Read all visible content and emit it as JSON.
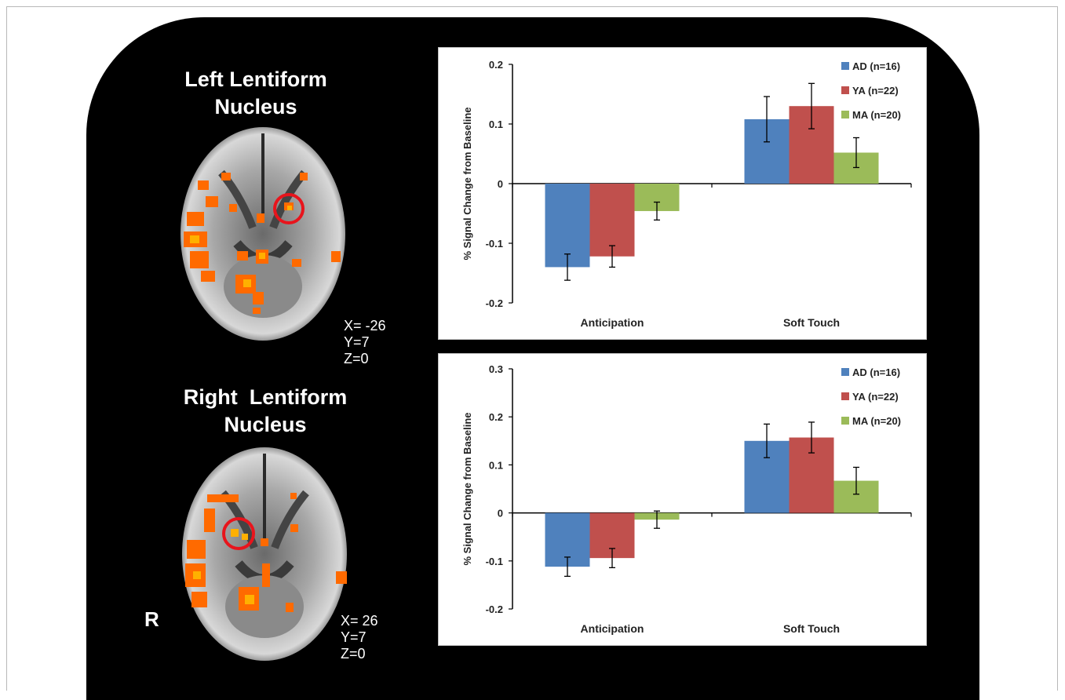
{
  "figure": {
    "brain_top": {
      "title": "Left Lentiform Nucleus",
      "title_lines": [
        "Left Lentiform",
        "Nucleus"
      ],
      "coords": [
        "X= -26",
        "Y=7",
        "Z=0"
      ]
    },
    "brain_bottom": {
      "title": "Right  Lentiform Nucleus",
      "title_lines": [
        "Right  Lentiform",
        "Nucleus"
      ],
      "coords": [
        "X= 26",
        "Y=7",
        "Z=0"
      ],
      "orientation_label": "R"
    },
    "colors": {
      "AD": "#4f81bd",
      "YA": "#c0504d",
      "MA": "#9bbb59",
      "activation": "#ff7a00",
      "roi_circle": "#e8141c"
    }
  },
  "chart_data": [
    {
      "type": "bar",
      "categories": [
        "Anticipation",
        "Soft Touch"
      ],
      "series": [
        {
          "name": "AD (n=16)",
          "values": [
            -0.14,
            0.108
          ],
          "errors": [
            0.022,
            0.038
          ]
        },
        {
          "name": "YA (n=22)",
          "values": [
            -0.122,
            0.13
          ],
          "errors": [
            0.018,
            0.038
          ]
        },
        {
          "name": "MA (n=20)",
          "values": [
            -0.046,
            0.052
          ],
          "errors": [
            0.015,
            0.025
          ]
        }
      ],
      "ylabel": "% Signal Change from Baseline",
      "xlabel": "",
      "ylim": [
        -0.2,
        0.2
      ],
      "yticks": [
        0.2,
        0.1,
        0,
        -0.1,
        -0.2
      ],
      "ytick_labels": [
        "0.2",
        "0.1",
        "0",
        "-0.1",
        "-0.2"
      ],
      "legend": "top-right",
      "grid": false
    },
    {
      "type": "bar",
      "categories": [
        "Anticipation",
        "Soft Touch"
      ],
      "series": [
        {
          "name": "AD (n=16)",
          "values": [
            -0.112,
            0.15
          ],
          "errors": [
            0.02,
            0.035
          ]
        },
        {
          "name": "YA (n=22)",
          "values": [
            -0.094,
            0.157
          ],
          "errors": [
            0.02,
            0.032
          ]
        },
        {
          "name": "MA (n=20)",
          "values": [
            -0.014,
            0.067
          ],
          "errors": [
            0.018,
            0.028
          ]
        }
      ],
      "ylabel": "% Signal Change from Baseline",
      "xlabel": "",
      "ylim": [
        -0.2,
        0.3
      ],
      "yticks": [
        0.3,
        0.2,
        0.1,
        0,
        -0.1,
        -0.2
      ],
      "ytick_labels": [
        "0.3",
        "0.2",
        "0.1",
        "0",
        "-0.1",
        "-0.2"
      ],
      "legend": "top-right",
      "grid": false
    }
  ]
}
